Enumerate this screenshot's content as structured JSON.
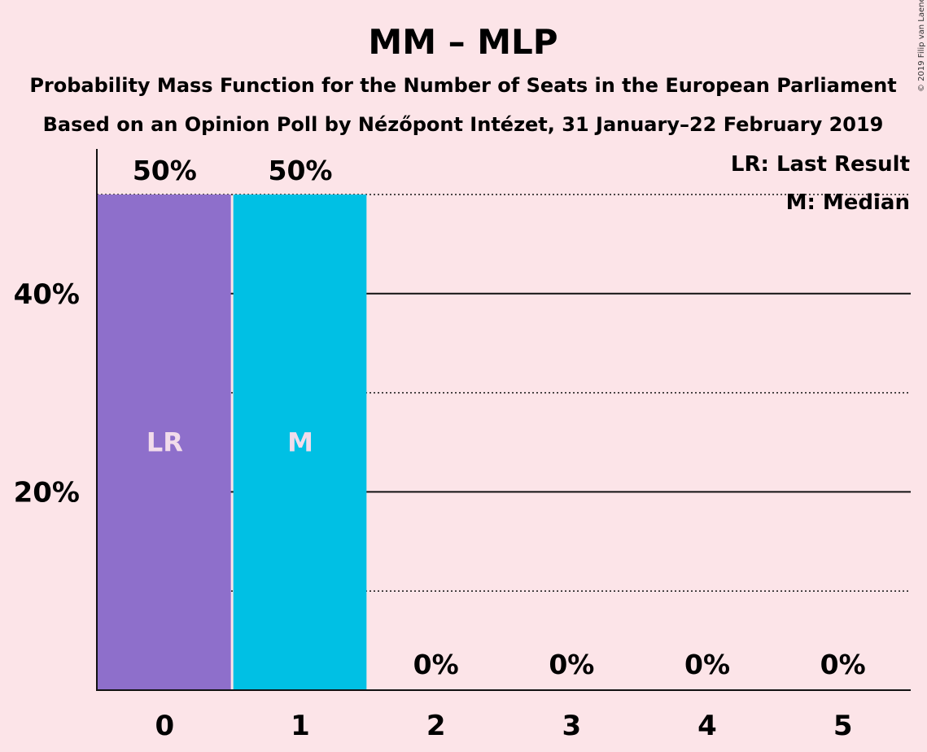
{
  "title": "MM – MLP",
  "subtitle1": "Probability Mass Function for the Number of Seats in the European Parliament",
  "subtitle2": "Based on an Opinion Poll by Nézőpont Intézet, 31 January–22 February 2019",
  "copyright": "© 2019 Filip van Laenen",
  "legend": {
    "last_result": "LR: Last Result",
    "median": "M: Median"
  },
  "colors": {
    "background": "#FCE4E8",
    "last_result_bar": "#8E6FCB",
    "median_bar": "#00C0E4",
    "inbar_text": "#F2DCEB"
  },
  "chart_data": {
    "type": "bar",
    "categories": [
      "0",
      "1",
      "2",
      "3",
      "4",
      "5"
    ],
    "values": [
      50,
      50,
      0,
      0,
      0,
      0
    ],
    "value_labels": [
      "50%",
      "50%",
      "0%",
      "0%",
      "0%",
      "0%"
    ],
    "bar_markers": [
      "LR",
      "M",
      "",
      "",
      "",
      ""
    ],
    "y_ticks": [
      20,
      40
    ],
    "y_tick_labels": [
      "20%",
      "40%"
    ],
    "ylim": [
      0,
      55
    ],
    "grid_solid": [
      20,
      40
    ],
    "grid_dotted": [
      10,
      30,
      50
    ],
    "last_result_category": "0",
    "median_category": "1",
    "legend_position": "top-right"
  }
}
